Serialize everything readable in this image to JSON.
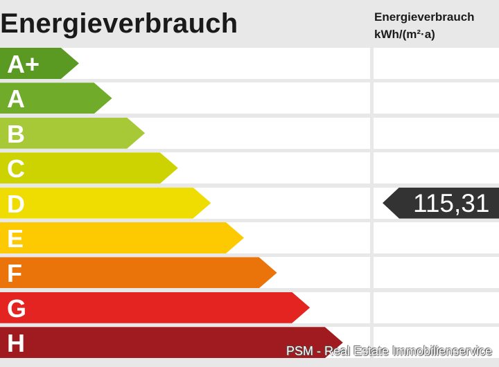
{
  "title": "Energieverbrauch",
  "unit_header": {
    "line1": "Energieverbrauch",
    "line2": "kWh/(m²·a)"
  },
  "classes": [
    {
      "label": "A+",
      "color": "#5b9a22"
    },
    {
      "label": "A",
      "color": "#71ab2a"
    },
    {
      "label": "B",
      "color": "#a8c937"
    },
    {
      "label": "C",
      "color": "#cdd300"
    },
    {
      "label": "D",
      "color": "#efdc00"
    },
    {
      "label": "E",
      "color": "#fdc900"
    },
    {
      "label": "F",
      "color": "#ea7409"
    },
    {
      "label": "G",
      "color": "#e32421"
    },
    {
      "label": "H",
      "color": "#a01b1f"
    }
  ],
  "marker": {
    "value": "115,31",
    "class": "D",
    "color": "#333333"
  },
  "watermark": "PSM - Real Estate Immobilienservice"
}
